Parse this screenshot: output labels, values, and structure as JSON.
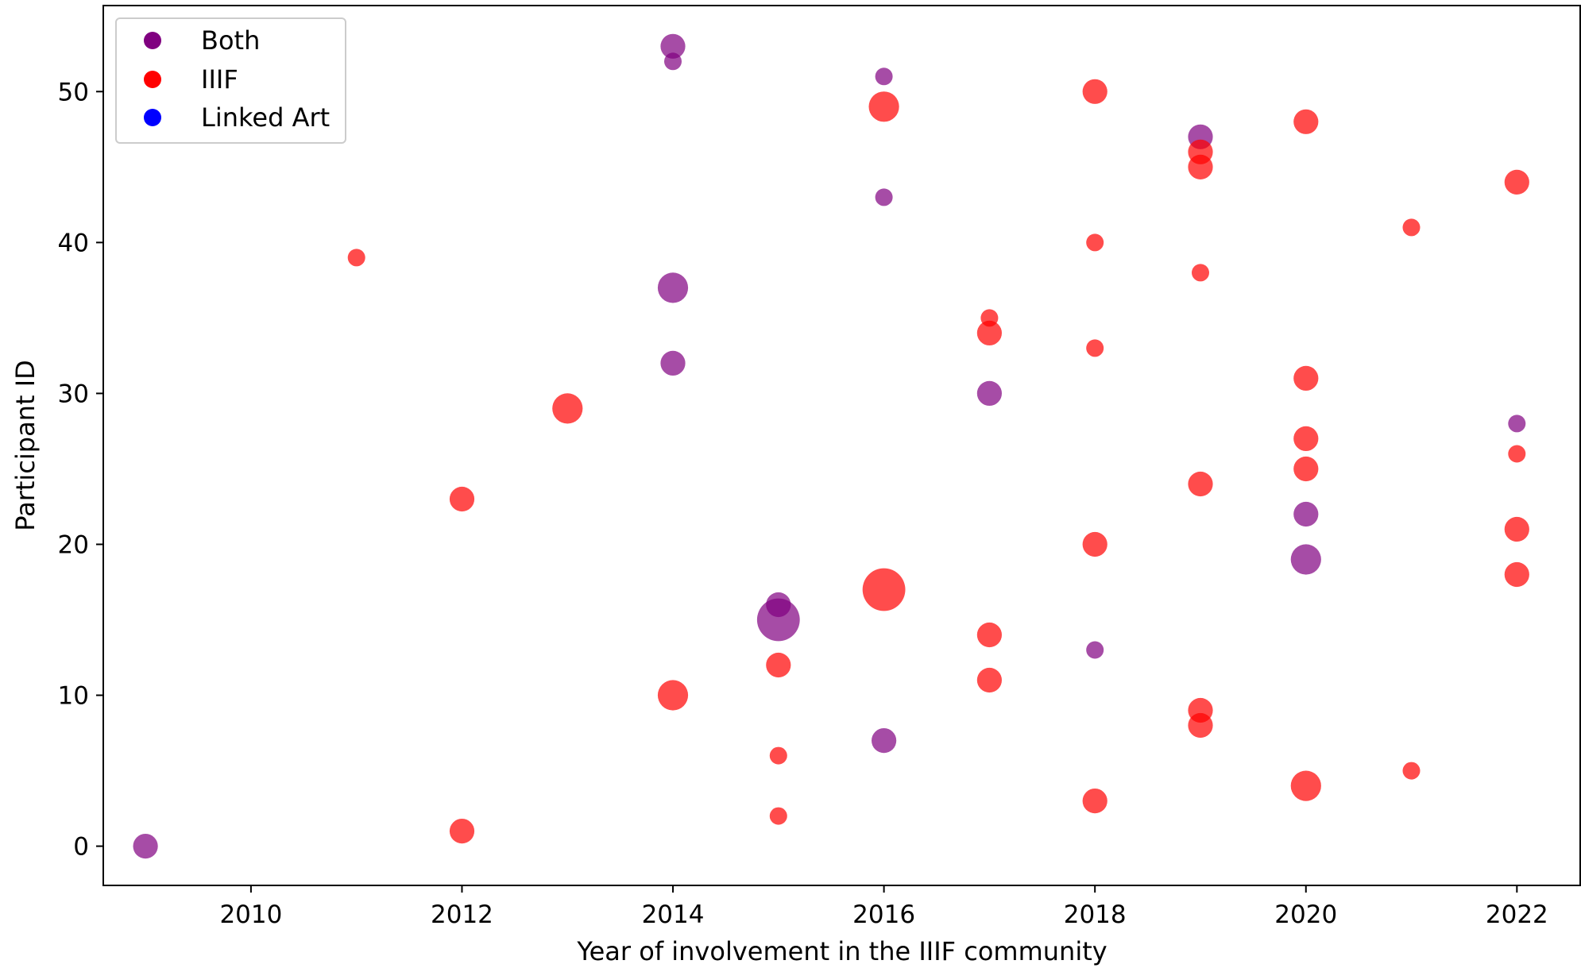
{
  "chart_data": {
    "type": "scatter",
    "title": "",
    "xlabel": "Year of involvement in the IIIF community",
    "ylabel": "Participant ID",
    "xlim": [
      2008.6,
      2022.6
    ],
    "ylim": [
      -2.6,
      55.7
    ],
    "xticks": [
      2010,
      2012,
      2014,
      2016,
      2018,
      2020,
      2022
    ],
    "yticks": [
      0,
      10,
      20,
      30,
      40,
      50
    ],
    "grid": false,
    "legend_position": "top-left",
    "marker_opacity": 0.7,
    "series": [
      {
        "name": "Both",
        "color": "#800080",
        "points": [
          {
            "id": 0,
            "year": 2009,
            "size": 2
          },
          {
            "id": 7,
            "year": 2016,
            "size": 2
          },
          {
            "id": 13,
            "year": 2018,
            "size": 1
          },
          {
            "id": 15,
            "year": 2015,
            "size": 6
          },
          {
            "id": 16,
            "year": 2015,
            "size": 2
          },
          {
            "id": 19,
            "year": 2020,
            "size": 3
          },
          {
            "id": 22,
            "year": 2020,
            "size": 2
          },
          {
            "id": 28,
            "year": 2022,
            "size": 1
          },
          {
            "id": 30,
            "year": 2017,
            "size": 2
          },
          {
            "id": 32,
            "year": 2014,
            "size": 2
          },
          {
            "id": 37,
            "year": 2014,
            "size": 3
          },
          {
            "id": 43,
            "year": 2016,
            "size": 1
          },
          {
            "id": 47,
            "year": 2019,
            "size": 2
          },
          {
            "id": 51,
            "year": 2016,
            "size": 1
          },
          {
            "id": 52,
            "year": 2014,
            "size": 1
          },
          {
            "id": 53,
            "year": 2014,
            "size": 2
          }
        ]
      },
      {
        "name": "IIIF",
        "color": "#ff0000",
        "points": [
          {
            "id": 1,
            "year": 2012,
            "size": 2
          },
          {
            "id": 2,
            "year": 2015,
            "size": 1
          },
          {
            "id": 3,
            "year": 2018,
            "size": 2
          },
          {
            "id": 4,
            "year": 2020,
            "size": 3
          },
          {
            "id": 5,
            "year": 2021,
            "size": 1
          },
          {
            "id": 6,
            "year": 2015,
            "size": 1
          },
          {
            "id": 8,
            "year": 2019,
            "size": 2
          },
          {
            "id": 9,
            "year": 2019,
            "size": 2
          },
          {
            "id": 10,
            "year": 2014,
            "size": 3
          },
          {
            "id": 11,
            "year": 2017,
            "size": 2
          },
          {
            "id": 12,
            "year": 2015,
            "size": 2
          },
          {
            "id": 14,
            "year": 2017,
            "size": 2
          },
          {
            "id": 17,
            "year": 2016,
            "size": 6
          },
          {
            "id": 18,
            "year": 2022,
            "size": 2
          },
          {
            "id": 20,
            "year": 2018,
            "size": 2
          },
          {
            "id": 21,
            "year": 2022,
            "size": 2
          },
          {
            "id": 23,
            "year": 2012,
            "size": 2
          },
          {
            "id": 24,
            "year": 2019,
            "size": 2
          },
          {
            "id": 25,
            "year": 2020,
            "size": 2
          },
          {
            "id": 26,
            "year": 2022,
            "size": 1
          },
          {
            "id": 27,
            "year": 2020,
            "size": 2
          },
          {
            "id": 29,
            "year": 2013,
            "size": 3
          },
          {
            "id": 31,
            "year": 2020,
            "size": 2
          },
          {
            "id": 33,
            "year": 2018,
            "size": 1
          },
          {
            "id": 34,
            "year": 2017,
            "size": 2
          },
          {
            "id": 35,
            "year": 2017,
            "size": 1
          },
          {
            "id": 38,
            "year": 2019,
            "size": 1
          },
          {
            "id": 39,
            "year": 2011,
            "size": 1
          },
          {
            "id": 40,
            "year": 2018,
            "size": 1
          },
          {
            "id": 41,
            "year": 2021,
            "size": 1
          },
          {
            "id": 44,
            "year": 2022,
            "size": 2
          },
          {
            "id": 45,
            "year": 2019,
            "size": 2
          },
          {
            "id": 46,
            "year": 2019,
            "size": 2
          },
          {
            "id": 48,
            "year": 2020,
            "size": 2
          },
          {
            "id": 49,
            "year": 2016,
            "size": 3
          },
          {
            "id": 50,
            "year": 2018,
            "size": 2
          }
        ]
      },
      {
        "name": "Linked Art",
        "color": "#0000ff",
        "points": []
      }
    ]
  }
}
